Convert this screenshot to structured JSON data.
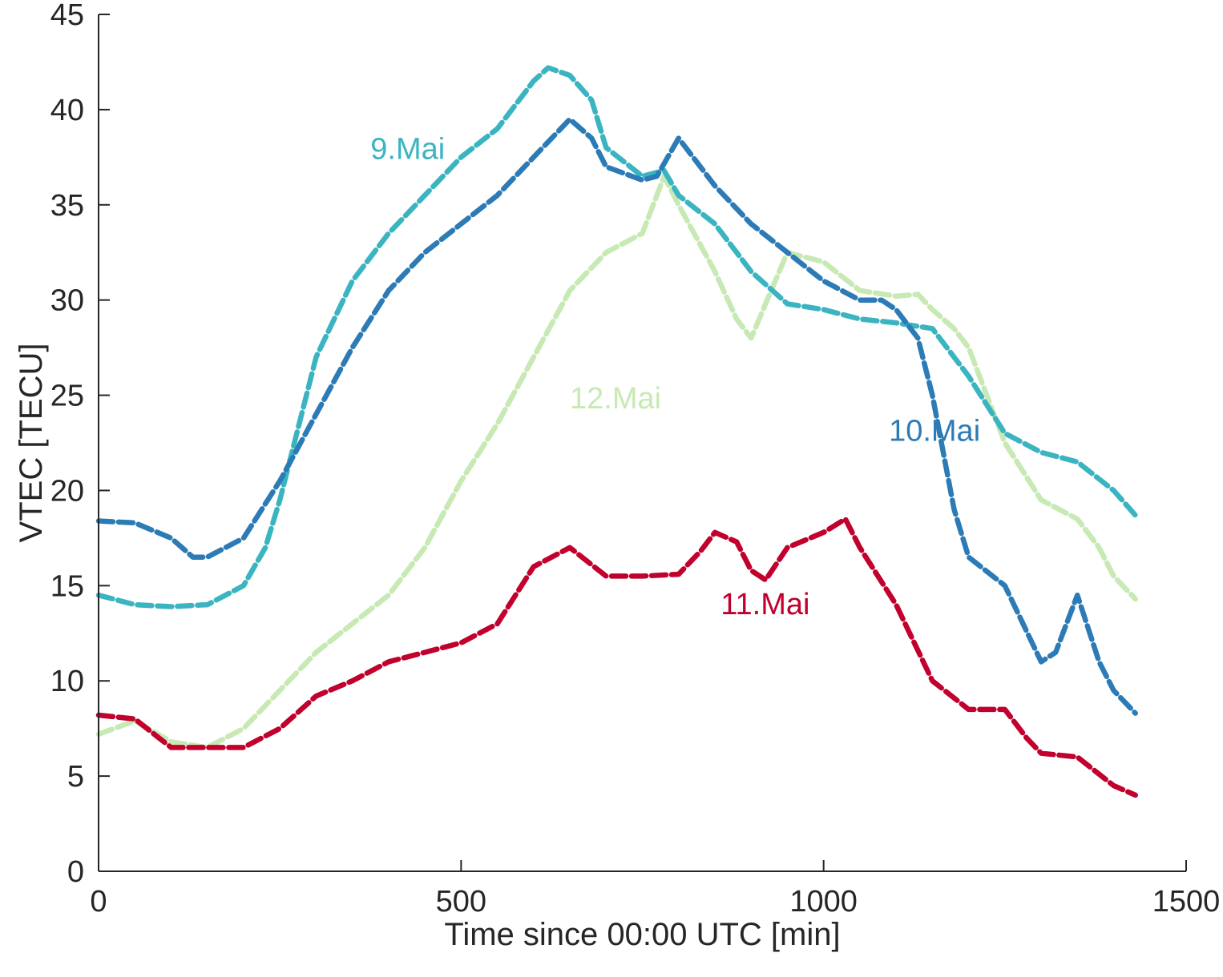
{
  "chart_data": {
    "type": "line",
    "title": "",
    "xlabel": "Time since 00:00 UTC [min]",
    "ylabel": "VTEC [TECU]",
    "xlim": [
      0,
      1500
    ],
    "ylim": [
      0,
      45
    ],
    "xticks": [
      0,
      500,
      1000,
      1500
    ],
    "yticks": [
      0,
      5,
      10,
      15,
      20,
      25,
      30,
      35,
      40,
      45
    ],
    "grid": false,
    "legend": "none",
    "series": [
      {
        "name": "9.Mai",
        "color": "#3BB4C1",
        "x": [
          0,
          50,
          100,
          150,
          200,
          230,
          250,
          270,
          300,
          350,
          400,
          450,
          500,
          550,
          600,
          620,
          650,
          680,
          700,
          750,
          780,
          800,
          850,
          900,
          950,
          1000,
          1050,
          1100,
          1150,
          1200,
          1250,
          1300,
          1350,
          1400,
          1430
        ],
        "y": [
          14.5,
          14.0,
          13.9,
          14.0,
          15.0,
          17.0,
          19.5,
          22.5,
          27.0,
          31.0,
          33.5,
          35.5,
          37.5,
          39.0,
          41.5,
          42.2,
          41.8,
          40.5,
          38.0,
          36.5,
          36.8,
          35.5,
          34.0,
          31.5,
          29.8,
          29.5,
          29.0,
          28.8,
          28.5,
          26.0,
          23.0,
          22.0,
          21.5,
          20.0,
          18.7
        ]
      },
      {
        "name": "10.Mai",
        "color": "#2C7BB6",
        "x": [
          0,
          50,
          100,
          130,
          150,
          200,
          250,
          300,
          350,
          400,
          450,
          500,
          550,
          600,
          650,
          680,
          700,
          750,
          770,
          800,
          850,
          900,
          950,
          1000,
          1050,
          1080,
          1100,
          1130,
          1150,
          1180,
          1200,
          1250,
          1300,
          1320,
          1350,
          1380,
          1400,
          1430
        ],
        "y": [
          18.4,
          18.3,
          17.5,
          16.5,
          16.5,
          17.5,
          20.5,
          24.0,
          27.5,
          30.5,
          32.5,
          34.0,
          35.5,
          37.5,
          39.5,
          38.5,
          37.0,
          36.3,
          36.5,
          38.5,
          36.0,
          34.0,
          32.5,
          31.0,
          30.0,
          30.0,
          29.5,
          28.0,
          25.0,
          19.0,
          16.5,
          15.0,
          11.0,
          11.5,
          14.5,
          11.0,
          9.5,
          8.3
        ]
      },
      {
        "name": "11.Mai",
        "color": "#C1002D",
        "x": [
          0,
          50,
          100,
          150,
          200,
          250,
          300,
          350,
          400,
          450,
          500,
          550,
          600,
          650,
          700,
          750,
          800,
          830,
          850,
          880,
          900,
          920,
          950,
          1000,
          1030,
          1050,
          1100,
          1150,
          1200,
          1250,
          1280,
          1300,
          1350,
          1400,
          1430
        ],
        "y": [
          8.2,
          8.0,
          6.5,
          6.5,
          6.5,
          7.5,
          9.2,
          10.0,
          11.0,
          11.5,
          12.0,
          13.0,
          16.0,
          17.0,
          15.5,
          15.5,
          15.6,
          16.8,
          17.8,
          17.3,
          15.8,
          15.3,
          17.0,
          17.8,
          18.5,
          17.0,
          14.0,
          10.0,
          8.5,
          8.5,
          7.0,
          6.2,
          6.0,
          4.5,
          4.0
        ]
      },
      {
        "name": "12.Mai",
        "color": "#C7E9B4",
        "x": [
          0,
          50,
          100,
          150,
          200,
          250,
          300,
          350,
          400,
          450,
          500,
          550,
          600,
          650,
          700,
          750,
          780,
          800,
          850,
          880,
          900,
          950,
          1000,
          1050,
          1100,
          1130,
          1150,
          1180,
          1200,
          1250,
          1300,
          1350,
          1380,
          1400,
          1430
        ],
        "y": [
          7.2,
          7.9,
          6.8,
          6.5,
          7.5,
          9.5,
          11.5,
          13.0,
          14.5,
          17.0,
          20.5,
          23.5,
          27.0,
          30.5,
          32.5,
          33.5,
          36.5,
          35.0,
          31.5,
          29.0,
          28.0,
          32.5,
          32.0,
          30.5,
          30.2,
          30.3,
          29.5,
          28.5,
          27.5,
          22.5,
          19.5,
          18.5,
          17.0,
          15.5,
          14.3
        ]
      }
    ],
    "annotations": [
      {
        "text": "9.Mai",
        "series": "9.Mai",
        "x": 375,
        "y": 37.4
      },
      {
        "text": "12.Mai",
        "series": "12.Mai",
        "x": 650,
        "y": 24.3
      },
      {
        "text": "10.Mai",
        "series": "10.Mai",
        "x": 1090,
        "y": 22.6
      },
      {
        "text": "11.Mai",
        "series": "11.Mai",
        "x": 858,
        "y": 13.5
      }
    ]
  }
}
